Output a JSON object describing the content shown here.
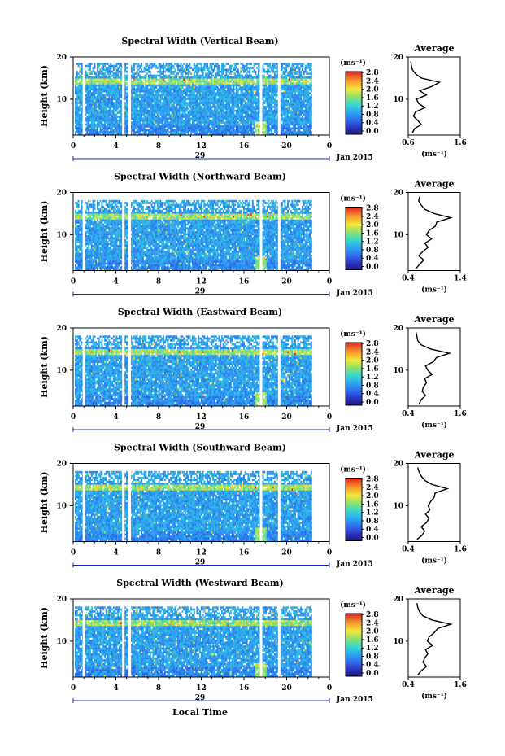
{
  "figure": {
    "date_label": "Jan 2015",
    "day_label": "29",
    "xaxis_label": "Local Time",
    "ylabel": "Height (km)",
    "cbar_unit": "(ms⁻¹)",
    "avg_title": "Average",
    "avg_xlabel": "(ms⁻¹)"
  },
  "chart_data": [
    {
      "type": "heatmap",
      "title": "Spectral Width (Vertical Beam)",
      "xlabel": "Local Time",
      "ylabel": "Height (km)",
      "x_ticks": [
        "0",
        "4",
        "8",
        "12",
        "16",
        "20",
        "0"
      ],
      "y_ticks": [
        "20",
        "10"
      ],
      "xlim": [
        0,
        24
      ],
      "ylim": [
        1.5,
        20
      ],
      "colorbar": {
        "unit": "(ms⁻¹)",
        "ticks": [
          "2.8",
          "2.4",
          "2.0",
          "1.6",
          "1.2",
          "0.8",
          "0.4",
          "0.0"
        ],
        "range": [
          0.0,
          3.0
        ]
      },
      "average_profile": {
        "title": "Average",
        "xlabel": "(ms⁻¹)",
        "x_ticks": [
          "0.6",
          "1.6"
        ],
        "y_ticks": [
          "20",
          "10"
        ],
        "xlim": [
          0.6,
          1.6
        ],
        "heights": [
          2,
          3,
          4,
          5,
          6,
          7,
          8,
          9,
          10,
          11,
          12,
          13,
          14,
          15,
          16,
          17,
          18,
          19
        ],
        "values": [
          0.68,
          0.72,
          0.85,
          0.78,
          0.7,
          0.74,
          0.92,
          0.8,
          0.76,
          0.95,
          0.82,
          1.05,
          1.2,
          0.85,
          0.74,
          0.68,
          0.66,
          0.65
        ]
      }
    },
    {
      "type": "heatmap",
      "title": "Spectral Width (Northward Beam)",
      "xlabel": "Local Time",
      "ylabel": "Height (km)",
      "x_ticks": [
        "0",
        "4",
        "8",
        "12",
        "16",
        "20",
        "0"
      ],
      "y_ticks": [
        "20",
        "10"
      ],
      "xlim": [
        0,
        24
      ],
      "ylim": [
        1.5,
        20
      ],
      "colorbar": {
        "unit": "(ms⁻¹)",
        "ticks": [
          "2.8",
          "2.4",
          "2.0",
          "1.6",
          "1.2",
          "0.8",
          "0.4",
          "0.0"
        ],
        "range": [
          0.0,
          3.0
        ]
      },
      "average_profile": {
        "title": "Average",
        "xlabel": "(ms⁻¹)",
        "x_ticks": [
          "0.4",
          "1.4"
        ],
        "y_ticks": [
          "20",
          "10"
        ],
        "xlim": [
          0.4,
          1.4
        ],
        "heights": [
          2,
          3,
          4,
          5,
          6,
          7,
          8,
          9,
          10,
          11,
          12,
          13,
          14,
          15,
          16,
          17,
          18,
          19
        ],
        "values": [
          0.55,
          0.62,
          0.7,
          0.6,
          0.68,
          0.78,
          0.72,
          0.85,
          0.75,
          0.8,
          0.92,
          0.95,
          1.22,
          0.9,
          0.72,
          0.65,
          0.6,
          0.62
        ]
      }
    },
    {
      "type": "heatmap",
      "title": "Spectral Width (Eastward Beam)",
      "xlabel": "Local Time",
      "ylabel": "Height (km)",
      "x_ticks": [
        "0",
        "4",
        "8",
        "12",
        "16",
        "20",
        "0"
      ],
      "y_ticks": [
        "20",
        "10"
      ],
      "xlim": [
        0,
        24
      ],
      "ylim": [
        1.5,
        20
      ],
      "colorbar": {
        "unit": "(ms⁻¹)",
        "ticks": [
          "2.8",
          "2.4",
          "2.0",
          "1.6",
          "1.2",
          "0.8",
          "0.4",
          "0.0"
        ],
        "range": [
          0.0,
          3.0
        ]
      },
      "average_profile": {
        "title": "Average",
        "xlabel": "(ms⁻¹)",
        "x_ticks": [
          "0.4",
          "1.6"
        ],
        "y_ticks": [
          "20",
          "10"
        ],
        "xlim": [
          0.4,
          1.6
        ],
        "heights": [
          2,
          3,
          4,
          5,
          6,
          7,
          8,
          9,
          10,
          11,
          12,
          13,
          14,
          15,
          16,
          17,
          18,
          19
        ],
        "values": [
          0.65,
          0.7,
          0.8,
          0.72,
          0.75,
          0.82,
          0.78,
          0.95,
          0.85,
          0.8,
          0.98,
          1.05,
          1.35,
          0.92,
          0.7,
          0.62,
          0.6,
          0.58
        ]
      }
    },
    {
      "type": "heatmap",
      "title": "Spectral Width (Southward Beam)",
      "xlabel": "Local Time",
      "ylabel": "Height (km)",
      "x_ticks": [
        "0",
        "4",
        "8",
        "12",
        "16",
        "20",
        "0"
      ],
      "y_ticks": [
        "20",
        "10"
      ],
      "xlim": [
        0,
        24
      ],
      "ylim": [
        1.5,
        20
      ],
      "colorbar": {
        "unit": "(ms⁻¹)",
        "ticks": [
          "2.8",
          "2.4",
          "2.0",
          "1.6",
          "1.2",
          "0.8",
          "0.4",
          "0.0"
        ],
        "range": [
          0.0,
          3.0
        ]
      },
      "average_profile": {
        "title": "Average",
        "xlabel": "(ms⁻¹)",
        "x_ticks": [
          "0.4",
          "1.6"
        ],
        "y_ticks": [
          "20",
          "10"
        ],
        "xlim": [
          0.4,
          1.6
        ],
        "heights": [
          2,
          3,
          4,
          5,
          6,
          7,
          8,
          9,
          10,
          11,
          12,
          13,
          14,
          15,
          16,
          17,
          18,
          19
        ],
        "values": [
          0.6,
          0.72,
          0.78,
          0.7,
          0.82,
          0.88,
          0.8,
          0.9,
          0.86,
          0.92,
          1.0,
          1.02,
          1.3,
          0.95,
          0.78,
          0.7,
          0.65,
          0.62
        ]
      }
    },
    {
      "type": "heatmap",
      "title": "Spectral Width (Westward Beam)",
      "xlabel": "Local Time",
      "ylabel": "Height (km)",
      "x_ticks": [
        "0",
        "4",
        "8",
        "12",
        "16",
        "20",
        "0"
      ],
      "y_ticks": [
        "20",
        "10"
      ],
      "xlim": [
        0,
        24
      ],
      "ylim": [
        1.5,
        20
      ],
      "colorbar": {
        "unit": "(ms⁻¹)",
        "ticks": [
          "2.8",
          "2.4",
          "2.0",
          "1.6",
          "1.2",
          "0.8",
          "0.4",
          "0.0"
        ],
        "range": [
          0.0,
          3.0
        ]
      },
      "average_profile": {
        "title": "Average",
        "xlabel": "(ms⁻¹)",
        "x_ticks": [
          "0.4",
          "1.6"
        ],
        "y_ticks": [
          "20",
          "10"
        ],
        "xlim": [
          0.4,
          1.6
        ],
        "heights": [
          2,
          3,
          4,
          5,
          6,
          7,
          8,
          9,
          10,
          11,
          12,
          13,
          14,
          15,
          16,
          17,
          18,
          19
        ],
        "values": [
          0.62,
          0.7,
          0.82,
          0.74,
          0.78,
          0.85,
          0.8,
          0.96,
          0.84,
          0.88,
          1.0,
          1.08,
          1.38,
          0.95,
          0.74,
          0.66,
          0.62,
          0.6
        ]
      }
    }
  ]
}
